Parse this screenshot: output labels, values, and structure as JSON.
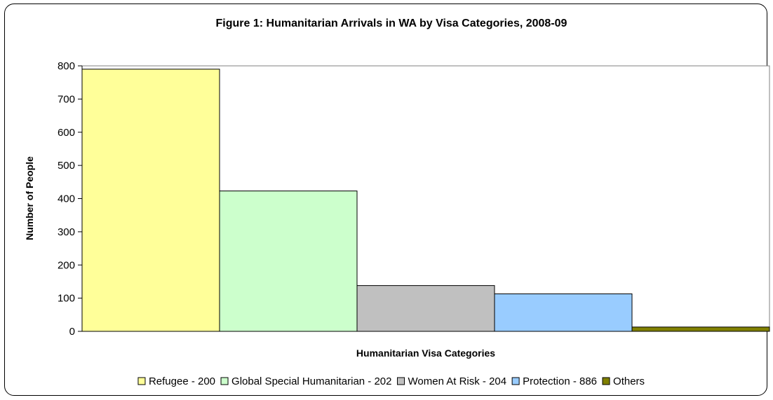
{
  "chart_data": {
    "type": "bar",
    "title": "Figure 1: Humanitarian Arrivals in WA by Visa Categories, 2008-09",
    "xlabel": "Humanitarian Visa Categories",
    "ylabel": "Number of People",
    "ylim": [
      0,
      800
    ],
    "yticks": [
      "0",
      "100",
      "200",
      "300",
      "400",
      "500",
      "600",
      "700",
      "800"
    ],
    "grid": false,
    "legend_position": "bottom",
    "series": [
      {
        "name": "Refugee - 200",
        "value": 790,
        "color": "#ffff99"
      },
      {
        "name": "Global Special Humanitarian - 202",
        "value": 423,
        "color": "#ccffcc"
      },
      {
        "name": "Women At Risk - 204",
        "value": 138,
        "color": "#c0c0c0"
      },
      {
        "name": "Protection - 886",
        "value": 113,
        "color": "#99ccff"
      },
      {
        "name": "Others",
        "value": 13,
        "color": "#808000"
      }
    ]
  }
}
